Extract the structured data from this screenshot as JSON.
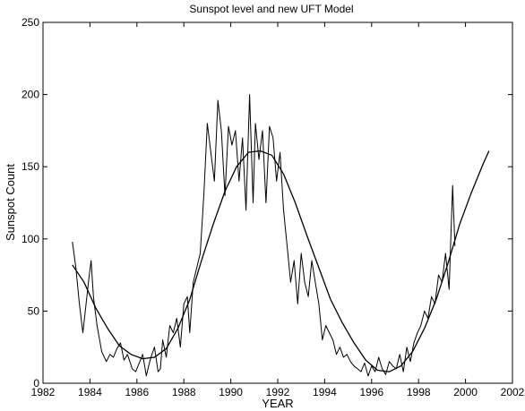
{
  "chart_data": {
    "type": "line",
    "title": "Sunspot level and new UFT Model",
    "xlabel": "YEAR",
    "ylabel": "Sunspot Count",
    "xlim": [
      1982,
      2002
    ],
    "ylim": [
      0,
      250
    ],
    "x_ticks": [
      1982,
      1984,
      1986,
      1988,
      1990,
      1992,
      1994,
      1996,
      1998,
      2000,
      2002
    ],
    "y_ticks": [
      0,
      50,
      100,
      150,
      200,
      250
    ],
    "grid": false,
    "series": [
      {
        "x": [
          1983.25,
          1983.4,
          1983.55,
          1983.7,
          1983.8,
          1983.95,
          1984.05,
          1984.15,
          1984.3,
          1984.5,
          1984.7,
          1984.85,
          1985.0,
          1985.15,
          1985.3,
          1985.45,
          1985.6,
          1985.8,
          1985.95,
          1986.1,
          1986.25,
          1986.4,
          1986.5,
          1986.6,
          1986.75,
          1986.9,
          1987.0,
          1987.1,
          1987.25,
          1987.4,
          1987.55,
          1987.7,
          1987.85,
          1988.0,
          1988.15,
          1988.25,
          1988.4,
          1988.55,
          1988.7,
          1988.85,
          1989.0,
          1989.15,
          1989.3,
          1989.45,
          1989.6,
          1989.75,
          1989.9,
          1990.05,
          1990.2,
          1990.35,
          1990.5,
          1990.65,
          1990.8,
          1990.95,
          1991.05,
          1991.2,
          1991.35,
          1991.5,
          1991.65,
          1991.8,
          1991.95,
          1992.1,
          1992.25,
          1992.4,
          1992.55,
          1992.7,
          1992.85,
          1993.0,
          1993.15,
          1993.3,
          1993.45,
          1993.6,
          1993.75,
          1993.9,
          1994.05,
          1994.2,
          1994.35,
          1994.5,
          1994.65,
          1994.8,
          1994.95,
          1995.1,
          1995.25,
          1995.4,
          1995.55,
          1995.7,
          1995.85,
          1996.0,
          1996.15,
          1996.3,
          1996.45,
          1996.6,
          1996.75,
          1996.9,
          1997.05,
          1997.2,
          1997.35,
          1997.5,
          1997.65,
          1997.8,
          1997.95,
          1998.1,
          1998.25,
          1998.4,
          1998.55,
          1998.7,
          1998.85,
          1999.0,
          1999.15,
          1999.3,
          1999.45,
          1999.55
        ],
        "y": [
          98,
          80,
          55,
          35,
          50,
          72,
          85,
          60,
          40,
          22,
          15,
          20,
          18,
          24,
          28,
          16,
          20,
          10,
          8,
          14,
          20,
          5,
          12,
          18,
          25,
          8,
          10,
          30,
          18,
          40,
          35,
          45,
          25,
          55,
          60,
          35,
          70,
          80,
          90,
          130,
          180,
          160,
          140,
          196,
          175,
          130,
          178,
          165,
          175,
          140,
          170,
          120,
          200,
          125,
          180,
          155,
          175,
          125,
          178,
          170,
          140,
          160,
          120,
          95,
          70,
          85,
          55,
          90,
          70,
          60,
          85,
          70,
          55,
          30,
          40,
          35,
          30,
          20,
          25,
          18,
          20,
          15,
          12,
          10,
          8,
          14,
          5,
          12,
          8,
          18,
          10,
          6,
          15,
          12,
          10,
          20,
          8,
          25,
          15,
          28,
          35,
          40,
          50,
          45,
          60,
          55,
          75,
          70,
          90,
          65,
          137,
          95
        ]
      },
      {
        "x": [
          1983.25,
          1983.75,
          1984.25,
          1984.75,
          1985.25,
          1985.75,
          1986.25,
          1986.75,
          1987.25,
          1987.75,
          1988.25,
          1988.75,
          1989.25,
          1989.75,
          1990.25,
          1990.75,
          1991.25,
          1991.75,
          1992.25,
          1992.75,
          1993.25,
          1993.75,
          1994.25,
          1994.75,
          1995.25,
          1995.75,
          1996.25,
          1996.75,
          1997.25,
          1997.75,
          1998.25,
          1998.75,
          1999.25,
          1999.75,
          2000.25,
          2000.75,
          2001.0
        ],
        "y": [
          82,
          70,
          52,
          38,
          26,
          20,
          17,
          18,
          24,
          38,
          58,
          85,
          110,
          133,
          150,
          160,
          161,
          158,
          145,
          125,
          102,
          80,
          58,
          42,
          28,
          16,
          9,
          8,
          12,
          22,
          38,
          58,
          83,
          110,
          132,
          152,
          161
        ]
      }
    ]
  }
}
